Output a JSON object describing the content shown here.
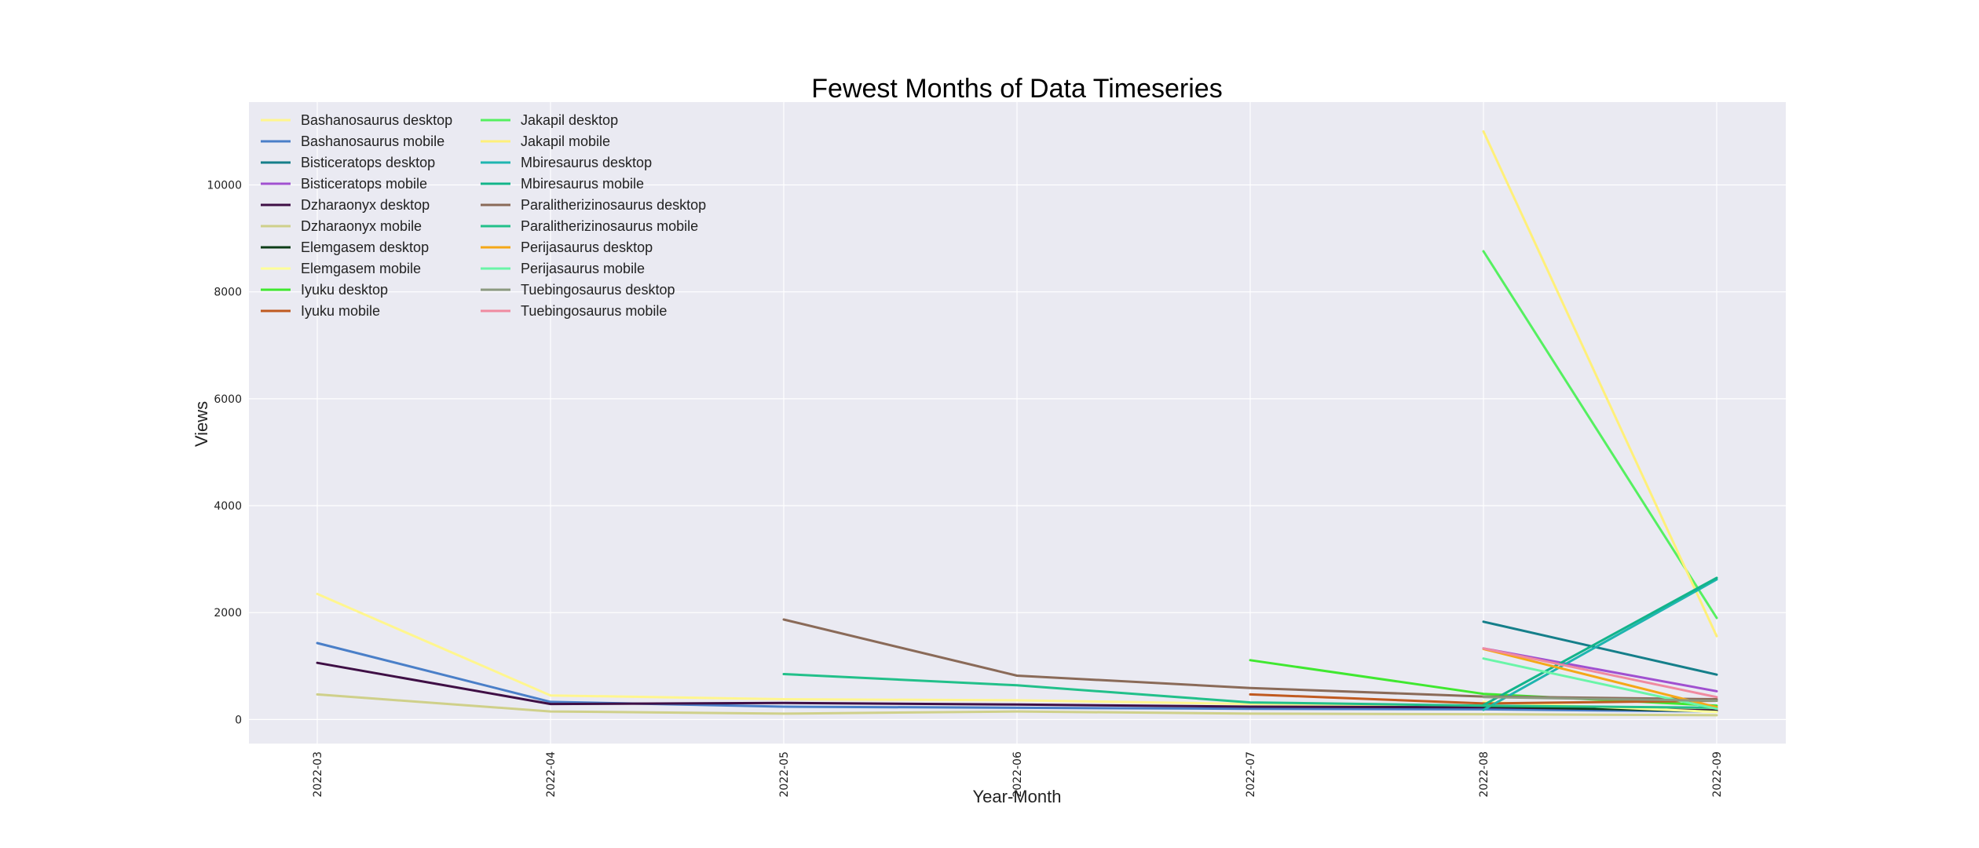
{
  "chart_data": {
    "type": "line",
    "title": "Fewest Months of Data Timeseries",
    "xlabel": "Year-Month",
    "ylabel": "Views",
    "x": [
      "2022-03",
      "2022-04",
      "2022-05",
      "2022-06",
      "2022-07",
      "2022-08",
      "2022-09"
    ],
    "y_ticks": [
      0,
      2000,
      4000,
      6000,
      8000,
      10000
    ],
    "ylim": [
      -450,
      11550
    ],
    "grid": true,
    "legend_position": "top-left",
    "legend_columns": 2,
    "series": [
      {
        "name": "Bashanosaurus desktop",
        "color": "#fff68f",
        "values": [
          2350,
          450,
          380,
          360,
          290,
          260,
          200
        ]
      },
      {
        "name": "Bashanosaurus mobile",
        "color": "#4a7fc8",
        "values": [
          1430,
          330,
          240,
          220,
          200,
          190,
          150
        ]
      },
      {
        "name": "Bisticeratops desktop",
        "color": "#157f8a",
        "values": [
          null,
          null,
          null,
          null,
          null,
          1830,
          840
        ]
      },
      {
        "name": "Bisticeratops mobile",
        "color": "#a050d0",
        "values": [
          null,
          null,
          null,
          null,
          null,
          1330,
          530
        ]
      },
      {
        "name": "Dzharaonyx desktop",
        "color": "#3f0f45",
        "values": [
          1060,
          290,
          310,
          280,
          240,
          230,
          170
        ]
      },
      {
        "name": "Dzharaonyx mobile",
        "color": "#cfd08a",
        "values": [
          470,
          150,
          110,
          150,
          110,
          100,
          80
        ]
      },
      {
        "name": "Elemgasem desktop",
        "color": "#0d3d18",
        "values": [
          null,
          null,
          null,
          null,
          null,
          250,
          150
        ]
      },
      {
        "name": "Elemgasem mobile",
        "color": "#ffff99",
        "values": [
          null,
          null,
          null,
          null,
          null,
          330,
          140
        ]
      },
      {
        "name": "Iyuku desktop",
        "color": "#40e830",
        "values": [
          null,
          null,
          null,
          null,
          1110,
          480,
          260
        ]
      },
      {
        "name": "Iyuku mobile",
        "color": "#c05a20",
        "values": [
          null,
          null,
          null,
          null,
          470,
          300,
          350
        ]
      },
      {
        "name": "Jakapil desktop",
        "color": "#55f060",
        "values": [
          null,
          null,
          null,
          null,
          null,
          8760,
          1900
        ]
      },
      {
        "name": "Jakapil mobile",
        "color": "#fff07a",
        "values": [
          null,
          null,
          null,
          null,
          null,
          11000,
          1560
        ]
      },
      {
        "name": "Mbiresaurus desktop",
        "color": "#1fb5b0",
        "values": [
          null,
          null,
          null,
          null,
          null,
          180,
          2620
        ]
      },
      {
        "name": "Mbiresaurus mobile",
        "color": "#12b48a",
        "values": [
          null,
          null,
          null,
          null,
          null,
          270,
          2650
        ]
      },
      {
        "name": "Paralitherizinosaurus desktop",
        "color": "#8a6a58",
        "values": [
          null,
          null,
          1870,
          820,
          590,
          430,
          380
        ]
      },
      {
        "name": "Paralitherizinosaurus mobile",
        "color": "#22c08a",
        "values": [
          null,
          null,
          850,
          640,
          320,
          260,
          220
        ]
      },
      {
        "name": "Perijasaurus desktop",
        "color": "#f5a818",
        "values": [
          null,
          null,
          null,
          null,
          null,
          1320,
          230
        ]
      },
      {
        "name": "Perijasaurus mobile",
        "color": "#6af5a8",
        "values": [
          null,
          null,
          null,
          null,
          null,
          1140,
          200
        ]
      },
      {
        "name": "Tuebingosaurus desktop",
        "color": "#8c9a80",
        "values": [
          null,
          null,
          null,
          null,
          null,
          420,
          350
        ]
      },
      {
        "name": "Tuebingosaurus mobile",
        "color": "#f08aa0",
        "values": [
          null,
          null,
          null,
          null,
          null,
          1330,
          420
        ]
      }
    ]
  }
}
